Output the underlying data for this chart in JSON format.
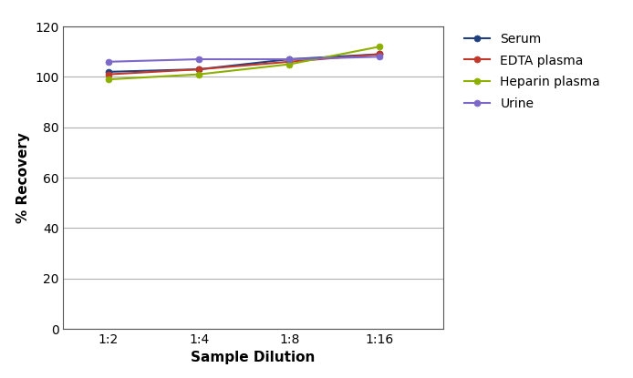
{
  "x_labels": [
    "1:2",
    "1:4",
    "1:8",
    "1:16"
  ],
  "x_values": [
    1,
    2,
    3,
    4
  ],
  "series": [
    {
      "label": "Serum",
      "color": "#1f3f7f",
      "values": [
        102,
        103,
        107,
        109
      ]
    },
    {
      "label": "EDTA plasma",
      "color": "#c0392b",
      "values": [
        101,
        103,
        106,
        109
      ]
    },
    {
      "label": "Heparin plasma",
      "color": "#8db000",
      "values": [
        99,
        101,
        105,
        112
      ]
    },
    {
      "label": "Urine",
      "color": "#7b68c8",
      "values": [
        106,
        107,
        107,
        108
      ]
    }
  ],
  "ylabel": "% Recovery",
  "xlabel": "Sample Dilution",
  "ylim": [
    0,
    120
  ],
  "yticks": [
    0,
    20,
    40,
    60,
    80,
    100,
    120
  ],
  "background_color": "#ffffff",
  "grid_color": "#b0b0b0",
  "marker": "o",
  "markersize": 5,
  "linewidth": 1.5,
  "tick_fontsize": 10,
  "label_fontsize": 11,
  "legend_fontsize": 10
}
